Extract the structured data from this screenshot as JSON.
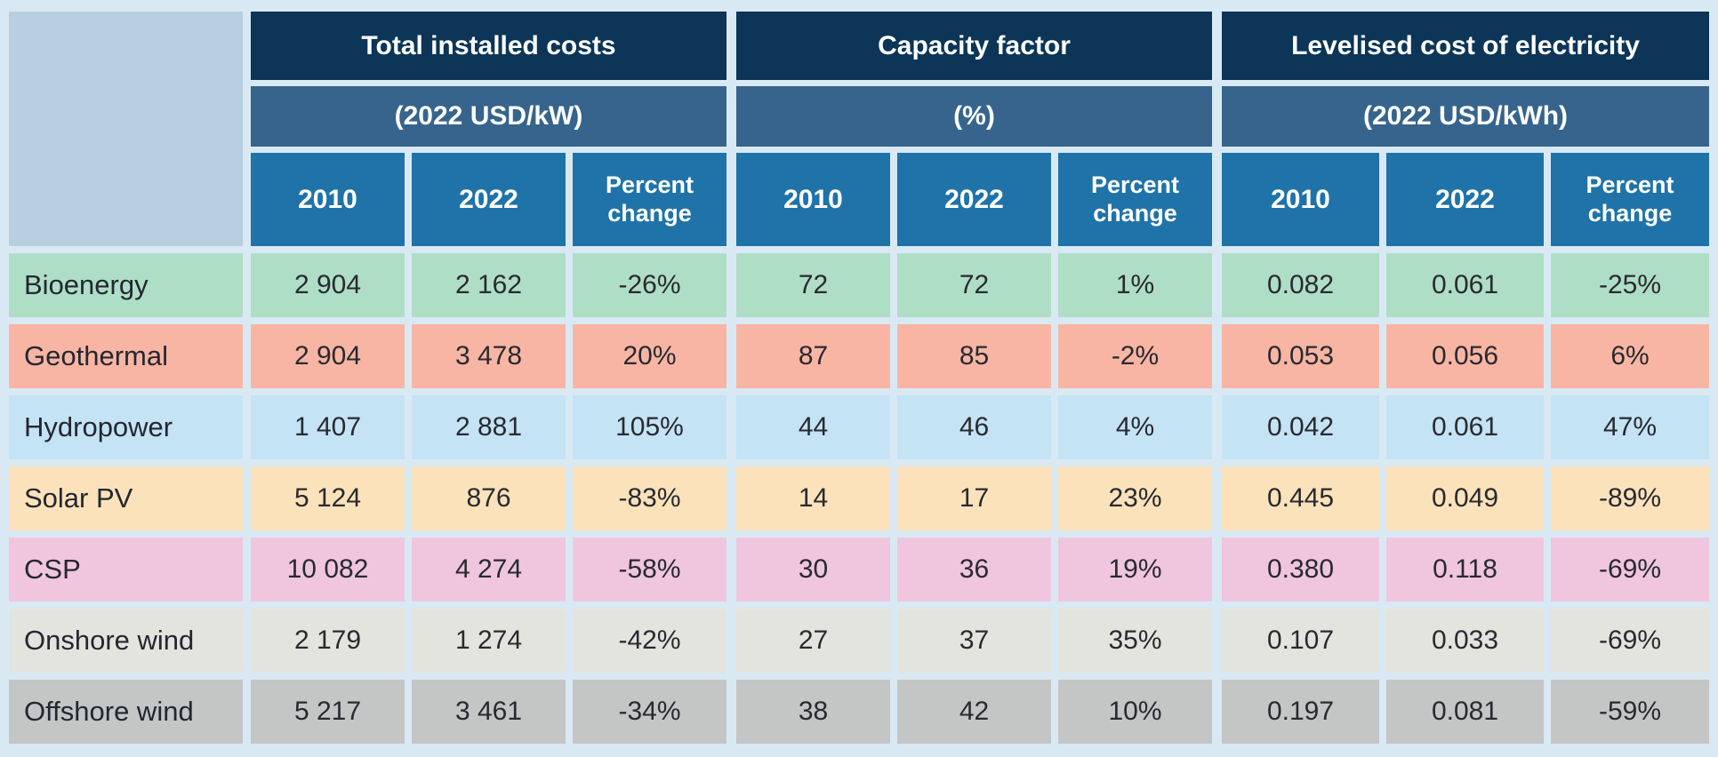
{
  "chart_data": {
    "type": "table",
    "column_groups": [
      {
        "title": "Total installed costs",
        "unit": "(2022 USD/kW)",
        "columns": [
          "2010",
          "2022",
          "Percent change"
        ]
      },
      {
        "title": "Capacity factor",
        "unit": "(%)",
        "columns": [
          "2010",
          "2022",
          "Percent change"
        ]
      },
      {
        "title": "Levelised cost of electricity",
        "unit": "(2022 USD/kWh)",
        "columns": [
          "2010",
          "2022",
          "Percent change"
        ]
      }
    ],
    "rows": [
      {
        "label": "Bioenergy",
        "row_color": "#afdec6",
        "values": [
          "2 904",
          "2 162",
          "-26%",
          "72",
          "72",
          "1%",
          "0.082",
          "0.061",
          "-25%"
        ]
      },
      {
        "label": "Geothermal",
        "row_color": "#f9b5a3",
        "values": [
          "2 904",
          "3 478",
          "20%",
          "87",
          "85",
          "-2%",
          "0.053",
          "0.056",
          "6%"
        ]
      },
      {
        "label": "Hydropower",
        "row_color": "#c4e3f5",
        "values": [
          "1 407",
          "2 881",
          "105%",
          "44",
          "46",
          "4%",
          "0.042",
          "0.061",
          "47%"
        ]
      },
      {
        "label": "Solar PV",
        "row_color": "#fbe2ba",
        "values": [
          "5 124",
          "876",
          "-83%",
          "14",
          "17",
          "23%",
          "0.445",
          "0.049",
          "-89%"
        ]
      },
      {
        "label": "CSP",
        "row_color": "#efc6dd",
        "values": [
          "10 082",
          "4 274",
          "-58%",
          "30",
          "36",
          "19%",
          "0.380",
          "0.118",
          "-69%"
        ]
      },
      {
        "label": "Onshore wind",
        "row_color": "#e4e4de",
        "values": [
          "2 179",
          "1 274",
          "-42%",
          "27",
          "37",
          "35%",
          "0.107",
          "0.033",
          "-69%"
        ]
      },
      {
        "label": "Offshore wind",
        "row_color": "#c4c5c5",
        "values": [
          "5 217",
          "3 461",
          "-34%",
          "38",
          "42",
          "10%",
          "0.197",
          "0.081",
          "-59%"
        ]
      }
    ]
  },
  "colors": {
    "page_bg": "#d9e9f4",
    "corner": "#b7cfdf",
    "header_dark": "#0c3557",
    "header_mid": "#36648c",
    "header_year": "#1f73a8",
    "header_text": "#ffffff",
    "gap": "#ffffff"
  }
}
